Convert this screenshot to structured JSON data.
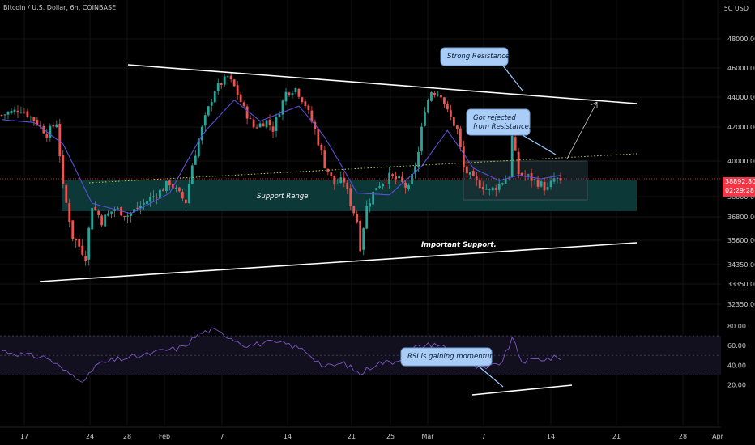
{
  "header": {
    "symbol": "Bitcoin / U.S. Dollar, 6h, COINBASE",
    "currency": "5C USD"
  },
  "price_label": {
    "price": "38892.80",
    "countdown": "02:29:28"
  },
  "chart_data": [
    {
      "type": "candlestick",
      "panel": "price",
      "y_ticks": [
        "48000.00",
        "46000.00",
        "44000.00",
        "42000.00",
        "40000.00",
        "38000.00",
        "36800.00",
        "35600.00",
        "34350.00",
        "33350.00",
        "32350.00"
      ],
      "x_ticks": [
        "17",
        "24",
        "28",
        "Feb",
        "7",
        "14",
        "21",
        "25",
        "Mar",
        "7",
        "14",
        "21",
        "28",
        "Apr"
      ],
      "last_price": 38892.8,
      "waypoints": [
        {
          "t": 0,
          "p": 42800
        },
        {
          "t": 6,
          "p": 43200
        },
        {
          "t": 10,
          "p": 42500
        },
        {
          "t": 14,
          "p": 41600
        },
        {
          "t": 17,
          "p": 42300
        },
        {
          "t": 19,
          "p": 38500
        },
        {
          "t": 22,
          "p": 35800
        },
        {
          "t": 26,
          "p": 34800
        },
        {
          "t": 28,
          "p": 37500
        },
        {
          "t": 31,
          "p": 36600
        },
        {
          "t": 35,
          "p": 37300
        },
        {
          "t": 39,
          "p": 36900
        },
        {
          "t": 44,
          "p": 37600
        },
        {
          "t": 49,
          "p": 38300
        },
        {
          "t": 52,
          "p": 38800
        },
        {
          "t": 55,
          "p": 38100
        },
        {
          "t": 57,
          "p": 37700
        },
        {
          "t": 59,
          "p": 39800
        },
        {
          "t": 63,
          "p": 42600
        },
        {
          "t": 66,
          "p": 44500
        },
        {
          "t": 70,
          "p": 45400
        },
        {
          "t": 72,
          "p": 44700
        },
        {
          "t": 75,
          "p": 43200
        },
        {
          "t": 78,
          "p": 42000
        },
        {
          "t": 82,
          "p": 42400
        },
        {
          "t": 84,
          "p": 41900
        },
        {
          "t": 88,
          "p": 44300
        },
        {
          "t": 91,
          "p": 44600
        },
        {
          "t": 94,
          "p": 43500
        },
        {
          "t": 97,
          "p": 41800
        },
        {
          "t": 100,
          "p": 39800
        },
        {
          "t": 103,
          "p": 38700
        },
        {
          "t": 106,
          "p": 38900
        },
        {
          "t": 108,
          "p": 37600
        },
        {
          "t": 110,
          "p": 36600
        },
        {
          "t": 111,
          "p": 35300
        },
        {
          "t": 113,
          "p": 37400
        },
        {
          "t": 116,
          "p": 38600
        },
        {
          "t": 120,
          "p": 39100
        },
        {
          "t": 123,
          "p": 38900
        },
        {
          "t": 126,
          "p": 38400
        },
        {
          "t": 129,
          "p": 40500
        },
        {
          "t": 131,
          "p": 43200
        },
        {
          "t": 133,
          "p": 44400
        },
        {
          "t": 136,
          "p": 44200
        },
        {
          "t": 138,
          "p": 43000
        },
        {
          "t": 141,
          "p": 41800
        },
        {
          "t": 143,
          "p": 39600
        },
        {
          "t": 146,
          "p": 38900
        },
        {
          "t": 149,
          "p": 38600
        },
        {
          "t": 151,
          "p": 38300
        },
        {
          "t": 154,
          "p": 38700
        },
        {
          "t": 157,
          "p": 39200
        },
        {
          "t": 158,
          "p": 41400
        },
        {
          "t": 160,
          "p": 39300
        },
        {
          "t": 163,
          "p": 39100
        },
        {
          "t": 166,
          "p": 38800
        },
        {
          "t": 169,
          "p": 38400
        },
        {
          "t": 171,
          "p": 39000
        },
        {
          "t": 173,
          "p": 38892.8
        }
      ],
      "sma": [
        {
          "t": 0,
          "p": 42500
        },
        {
          "t": 10,
          "p": 42300
        },
        {
          "t": 19,
          "p": 41000
        },
        {
          "t": 28,
          "p": 37600
        },
        {
          "t": 40,
          "p": 37000
        },
        {
          "t": 52,
          "p": 38200
        },
        {
          "t": 62,
          "p": 41500
        },
        {
          "t": 72,
          "p": 43800
        },
        {
          "t": 80,
          "p": 42400
        },
        {
          "t": 92,
          "p": 43400
        },
        {
          "t": 100,
          "p": 41400
        },
        {
          "t": 110,
          "p": 38200
        },
        {
          "t": 120,
          "p": 38100
        },
        {
          "t": 130,
          "p": 39700
        },
        {
          "t": 138,
          "p": 41800
        },
        {
          "t": 146,
          "p": 39600
        },
        {
          "t": 154,
          "p": 38900
        },
        {
          "t": 160,
          "p": 39200
        },
        {
          "t": 167,
          "p": 39000
        },
        {
          "t": 173,
          "p": 39200
        }
      ],
      "annotations": [
        {
          "text": "Strong Resistance."
        },
        {
          "text": "Got rejected\nfrom Resistance."
        },
        {
          "text": "Support Range."
        },
        {
          "text": "Important Support."
        }
      ]
    },
    {
      "type": "line",
      "panel": "rsi",
      "y_ticks": [
        "80.00",
        "60.00",
        "40.00",
        "20.00"
      ],
      "levels": [
        70,
        50,
        30
      ],
      "waypoints": [
        {
          "t": 0,
          "p": 55
        },
        {
          "t": 8,
          "p": 50
        },
        {
          "t": 14,
          "p": 48
        },
        {
          "t": 20,
          "p": 33
        },
        {
          "t": 26,
          "p": 24
        },
        {
          "t": 29,
          "p": 40
        },
        {
          "t": 36,
          "p": 46
        },
        {
          "t": 44,
          "p": 50
        },
        {
          "t": 50,
          "p": 55
        },
        {
          "t": 56,
          "p": 58
        },
        {
          "t": 61,
          "p": 72
        },
        {
          "t": 65,
          "p": 76
        },
        {
          "t": 70,
          "p": 70
        },
        {
          "t": 76,
          "p": 60
        },
        {
          "t": 82,
          "p": 63
        },
        {
          "t": 88,
          "p": 62
        },
        {
          "t": 94,
          "p": 55
        },
        {
          "t": 100,
          "p": 38
        },
        {
          "t": 106,
          "p": 42
        },
        {
          "t": 111,
          "p": 31
        },
        {
          "t": 116,
          "p": 42
        },
        {
          "t": 122,
          "p": 44
        },
        {
          "t": 128,
          "p": 58
        },
        {
          "t": 134,
          "p": 62
        },
        {
          "t": 140,
          "p": 55
        },
        {
          "t": 144,
          "p": 40
        },
        {
          "t": 150,
          "p": 36
        },
        {
          "t": 155,
          "p": 44
        },
        {
          "t": 158,
          "p": 67
        },
        {
          "t": 161,
          "p": 44
        },
        {
          "t": 166,
          "p": 46
        },
        {
          "t": 170,
          "p": 47
        },
        {
          "t": 173,
          "p": 48
        }
      ],
      "annotations": [
        {
          "text": "RSI is gaining momentum."
        }
      ]
    }
  ]
}
